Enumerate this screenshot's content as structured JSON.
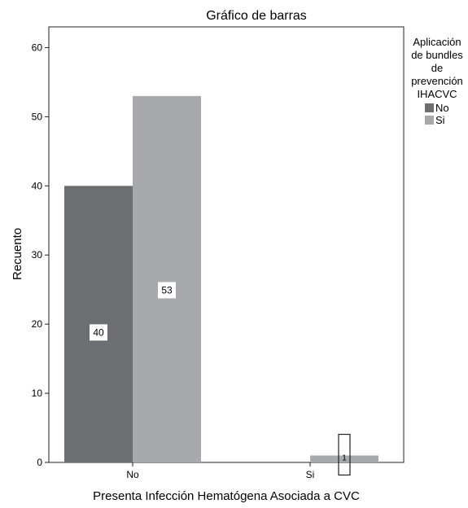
{
  "chart_data": {
    "type": "bar",
    "title": "Gráfico de barras",
    "xlabel": "Presenta Infección Hematógena Asociada a CVC",
    "ylabel": "Recuento",
    "categories": [
      "No",
      "Si"
    ],
    "series": [
      {
        "name": "No",
        "values": [
          40,
          0
        ],
        "color": "#6d6e71"
      },
      {
        "name": "Si",
        "values": [
          53,
          1
        ],
        "color": "#a7a9ac"
      }
    ],
    "data_labels": [
      {
        "category": "No",
        "series": "No",
        "text": "40"
      },
      {
        "category": "No",
        "series": "Si",
        "text": "53"
      },
      {
        "category": "Si",
        "series": "Si",
        "text": "1"
      }
    ],
    "ylim": [
      0,
      63
    ],
    "yticks": [
      0,
      10,
      20,
      30,
      40,
      50,
      60
    ],
    "grid": false,
    "legend": {
      "title": "Aplicación de bundles de prevención IHACVC",
      "title_lines": [
        "Aplicación",
        "de bundles",
        "de",
        "prevención",
        "IHACVC"
      ],
      "placement": "top-right",
      "entries": [
        "No",
        "Si"
      ]
    }
  }
}
